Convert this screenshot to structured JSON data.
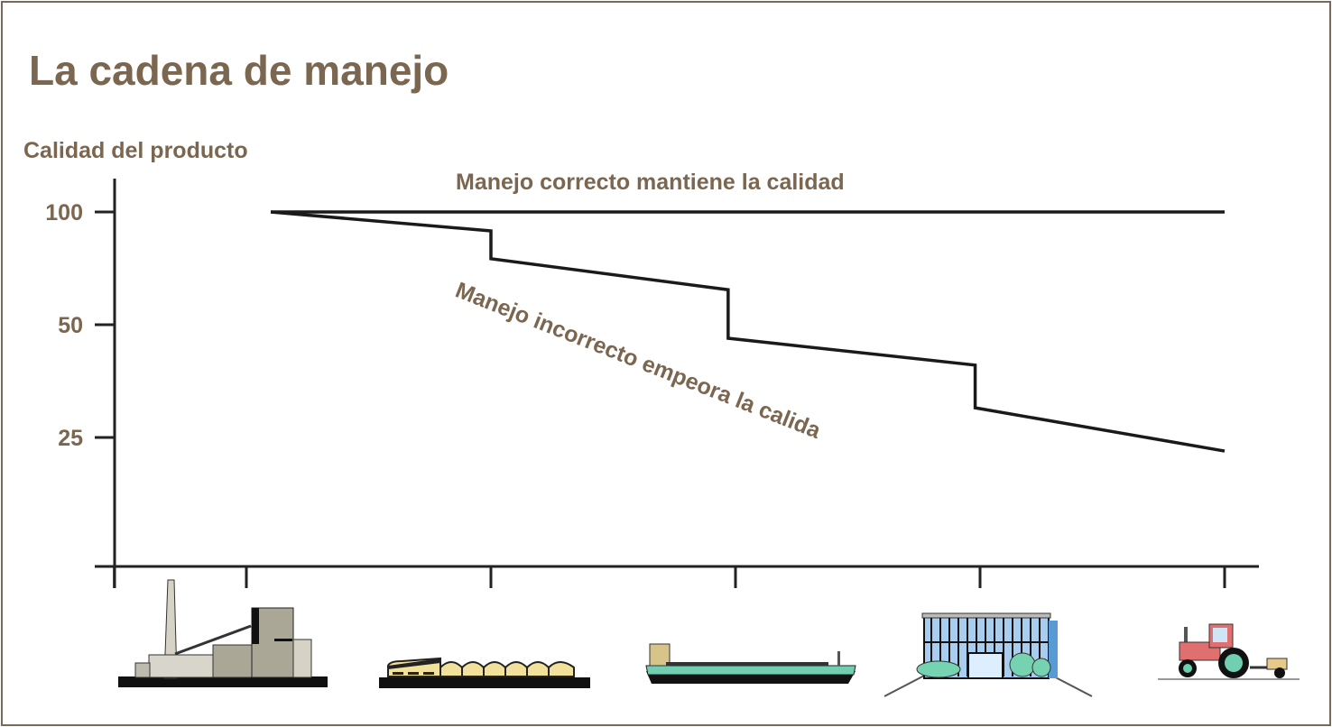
{
  "title": "La cadena de manejo",
  "colors": {
    "text": "#7b6650",
    "line": "#1a1a1a",
    "frame": "#7a6a55"
  },
  "chart_data": {
    "type": "line",
    "title": "La cadena de manejo",
    "ylabel": "Calidad del producto",
    "xlabel": "",
    "yscale": "log2",
    "yticks": [
      100,
      50,
      25
    ],
    "ylim": [
      11,
      140
    ],
    "xlim": [
      -0.54,
      4.1
    ],
    "grid": false,
    "x_categories": [
      "factory-icon",
      "warehouse-icon",
      "ship-icon",
      "office-building-icon",
      "tractor-icon"
    ],
    "series": [
      {
        "name": "Manejo correcto mantiene la calidad",
        "points": [
          [
            0.1,
            100
          ],
          [
            4.0,
            100
          ]
        ]
      },
      {
        "name": "Manejo incorrecto empeora la calida",
        "points": [
          [
            0.1,
            100
          ],
          [
            1.0,
            89
          ],
          [
            1.0,
            75
          ],
          [
            1.97,
            62
          ],
          [
            1.97,
            46
          ],
          [
            2.98,
            39
          ],
          [
            2.98,
            30
          ],
          [
            4.0,
            23
          ]
        ]
      }
    ]
  }
}
